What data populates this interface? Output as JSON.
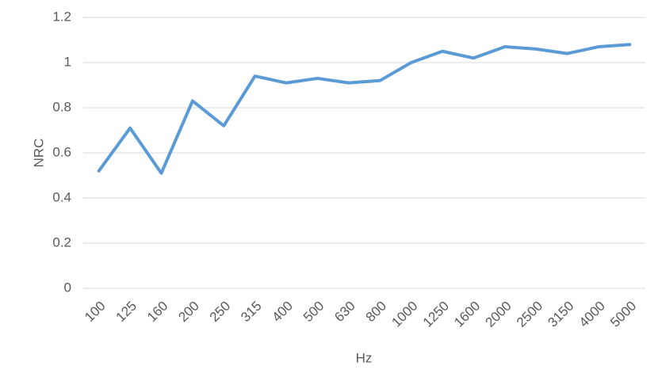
{
  "chart_data": {
    "type": "line",
    "x_label": "Hz",
    "y_label": "NRC",
    "categories": [
      "100",
      "125",
      "160",
      "200",
      "250",
      "315",
      "400",
      "500",
      "630",
      "800",
      "1000",
      "1250",
      "1600",
      "2000",
      "2500",
      "3150",
      "4000",
      "5000"
    ],
    "series": [
      {
        "name": "NRC",
        "color": "#5b9bd5",
        "values": [
          0.52,
          0.71,
          0.51,
          0.83,
          0.72,
          0.94,
          0.91,
          0.93,
          0.91,
          0.92,
          1.0,
          1.05,
          1.02,
          1.07,
          1.06,
          1.04,
          1.07,
          1.08
        ]
      }
    ],
    "ylim": [
      0,
      1.2
    ],
    "yticks": [
      0,
      0.2,
      0.4,
      0.6,
      0.8,
      1,
      1.2
    ],
    "grid": true
  }
}
